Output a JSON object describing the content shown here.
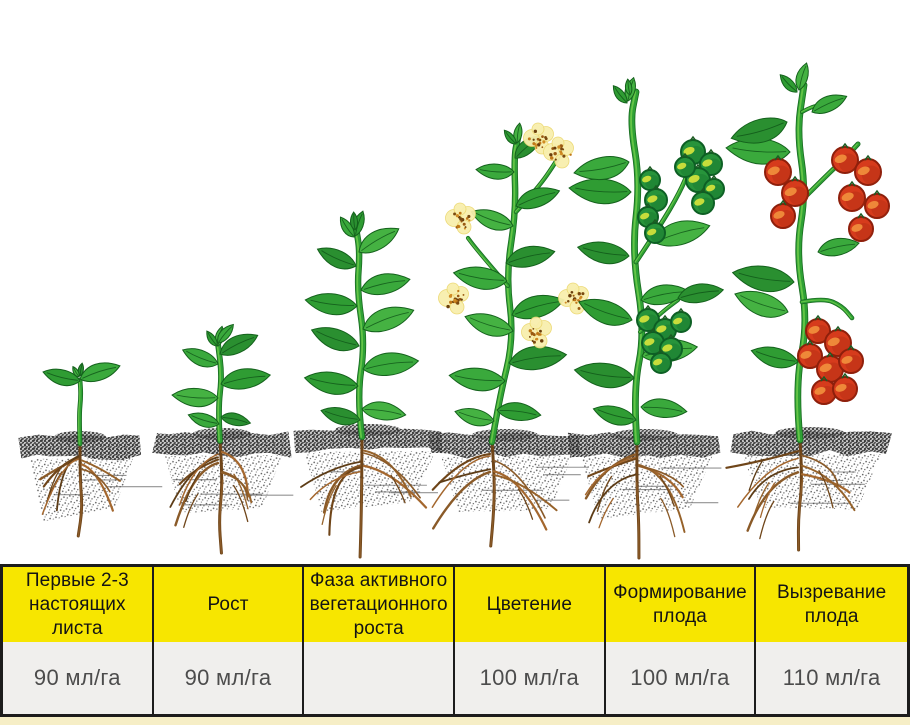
{
  "table": {
    "stages": [
      {
        "label": "Первые 2-3 настоящих листа",
        "rate": "90 мл/га"
      },
      {
        "label": "Рост",
        "rate": "90 мл/га"
      },
      {
        "label": "Фаза активного вегетационного роста",
        "rate": ""
      },
      {
        "label": "Цветение",
        "rate": "100 мл/га"
      },
      {
        "label": "Формирование плода",
        "rate": "100 мл/га"
      },
      {
        "label": "Вызревание плода",
        "rate": "110 мл/га"
      }
    ]
  },
  "illustration": {
    "stage_icons": [
      "seedling-icon",
      "young-plant-icon",
      "vegetative-plant-icon",
      "flowering-plant-icon",
      "green-fruit-plant-icon",
      "ripe-fruit-plant-icon"
    ]
  },
  "colors": {
    "header_bg": "#f7e600",
    "value_bg": "#f0efed",
    "border": "#1c1c1c",
    "header_text": "#141414",
    "value_text": "#4c4c4c",
    "bottom_strip": "#f6eec6",
    "leaf_green": "#2f9c33",
    "stem_green": "#2fa135",
    "root_brown": "#8a5a28",
    "flower_yellow": "#f8efad",
    "green_fruit": "#27943b",
    "ripe_fruit": "#d63b1c"
  }
}
